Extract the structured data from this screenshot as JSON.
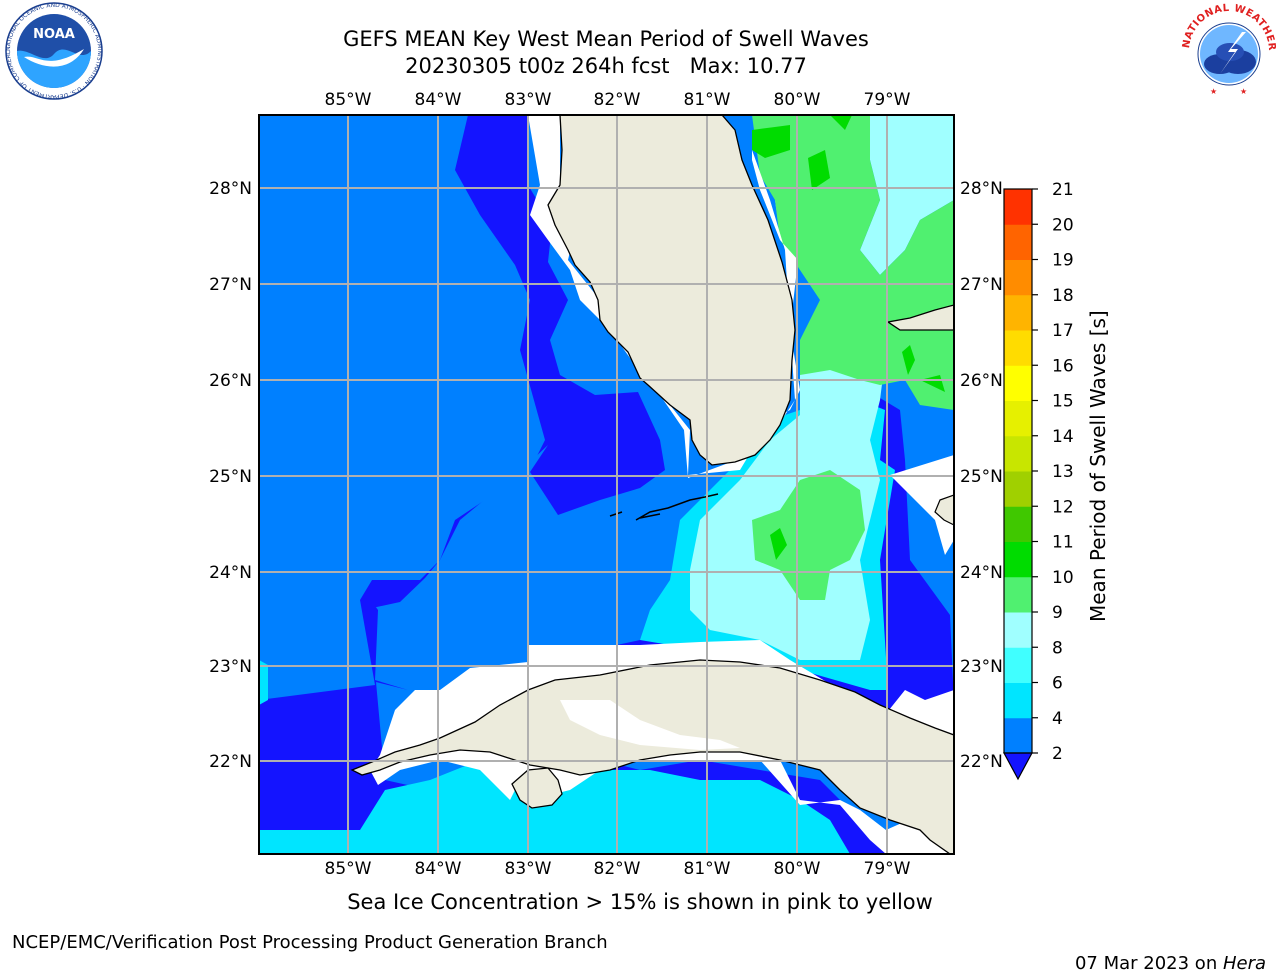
{
  "header": {
    "title_line1": "GEFS MEAN Key West Mean Period of Swell Waves",
    "title_line2": "20230305 t00z 264h fcst   Max: 10.77",
    "noaa_logo_text": "NOAA",
    "noaa_ring_text": "NATIONAL OCEANIC AND ATMOSPHERIC ADMINISTRATION · U.S. DEPARTMENT OF COMMERCE",
    "nws_ring_text": "NATIONAL WEATHER SERVICE"
  },
  "map": {
    "lon_labels": [
      "85°W",
      "84°W",
      "83°W",
      "82°W",
      "81°W",
      "80°W",
      "79°W"
    ],
    "lat_labels": [
      "28°N",
      "27°N",
      "26°N",
      "25°N",
      "24°N",
      "23°N",
      "22°N"
    ],
    "land_color": "#ecebdc",
    "ocean_color": "#0080ff"
  },
  "colorbar": {
    "label": "Mean Period of Swell Waves [s]",
    "ticks": [
      "2",
      "4",
      "6",
      "8",
      "9",
      "10",
      "11",
      "12",
      "13",
      "14",
      "15",
      "16",
      "17",
      "18",
      "19",
      "20",
      "21"
    ],
    "colors": [
      "#0080ff",
      "#00e5ff",
      "#40ffff",
      "#a0ffff",
      "#50f070",
      "#00dc00",
      "#40c800",
      "#a0d000",
      "#c8e600",
      "#e6f000",
      "#ffff00",
      "#ffdc00",
      "#ffb400",
      "#ff8c00",
      "#ff6400",
      "#ff3200"
    ],
    "under_color": "#1414ff"
  },
  "footer": {
    "note": "Sea Ice Concentration > 15% is shown in pink to yellow",
    "left": "NCEP/EMC/Verification Post Processing Product Generation Branch",
    "right_date": "07 Mar 2023 on ",
    "right_host": "Hera"
  }
}
